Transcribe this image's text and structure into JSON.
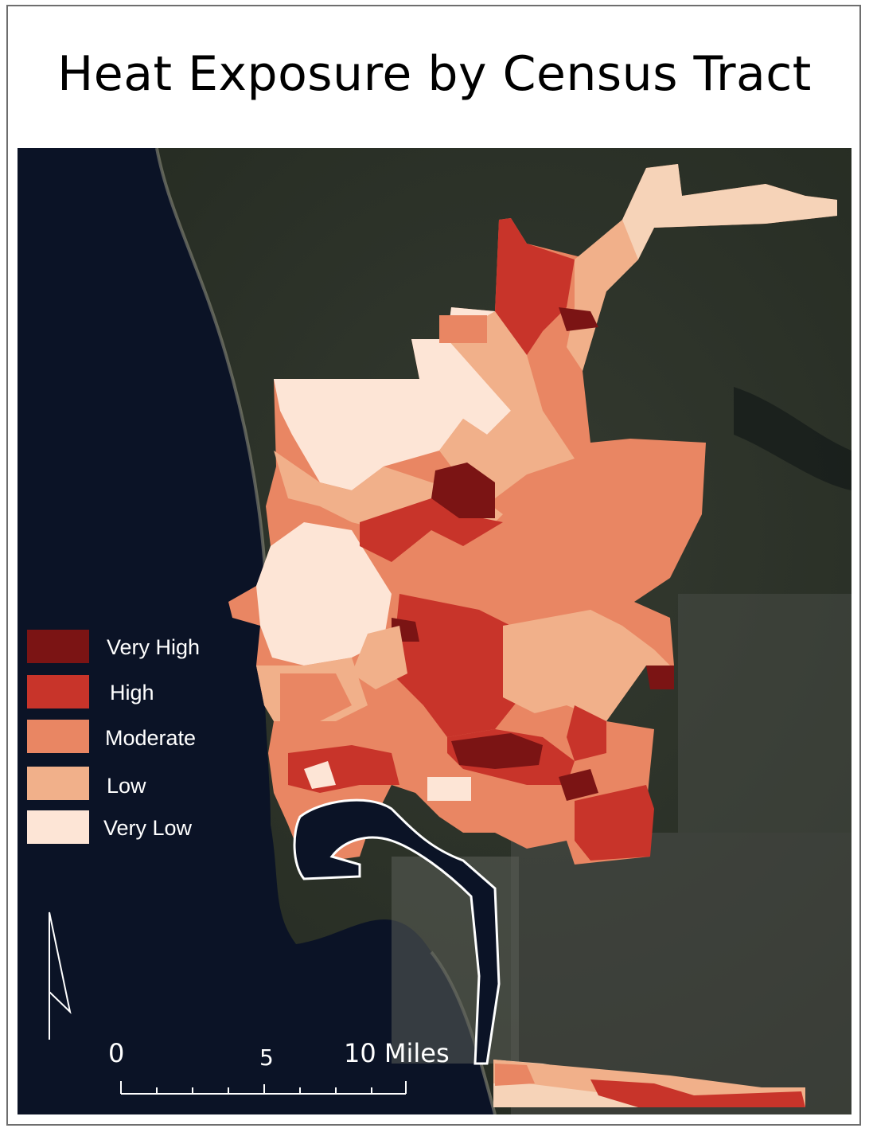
{
  "title": "Heat Exposure by Census Tract",
  "legend": {
    "items": [
      {
        "label": "Very High",
        "color": "#7b1414"
      },
      {
        "label": "High",
        "color": "#c8342a"
      },
      {
        "label": "Moderate",
        "color": "#e98663"
      },
      {
        "label": "Low",
        "color": "#f1b08a"
      },
      {
        "label": "Very Low",
        "color": "#fde5d6"
      }
    ]
  },
  "scale_bar": {
    "zero": "0",
    "mid": "5",
    "end": "10 Miles"
  },
  "colors": {
    "ocean": "#0a1223",
    "land": "#2b3028",
    "urban": "#5a5d58",
    "tract_outline": "#ffffff"
  }
}
